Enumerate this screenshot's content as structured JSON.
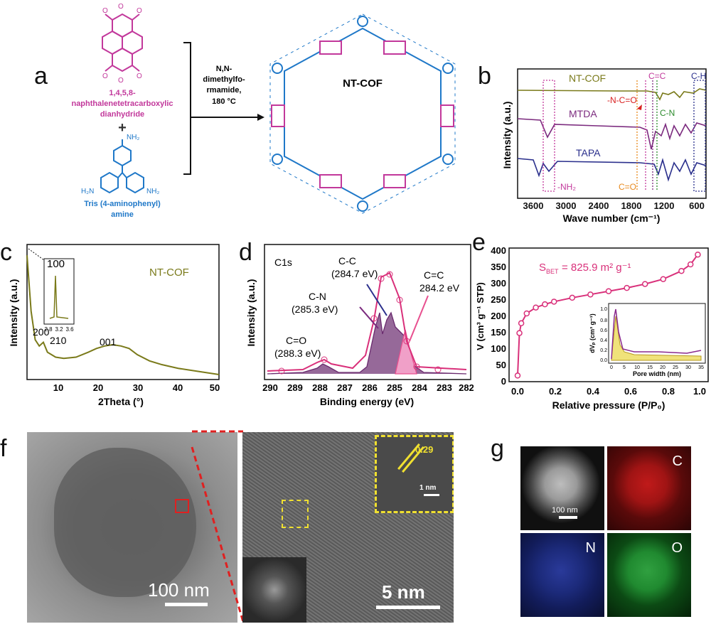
{
  "panels": {
    "a": {
      "letter": "a",
      "reagent1_name": "1,4,5,8-naphthalenetetracarboxylic dianhydride",
      "reagent1_lines": [
        "1,4,5,8-",
        "naphthalenetetracarboxylic",
        "dianhydride"
      ],
      "reagent2_name": "Tris (4-aminophenyl) amine",
      "reagent2_lines": [
        "Tris (4-aminophenyl)",
        "amine"
      ],
      "plus": "+",
      "condition_lines": [
        "N,N-",
        "dimethylfo-",
        "rmamide,",
        "180 °C"
      ],
      "product": "NT-COF",
      "nh2": "NH₂",
      "h2n": "H₂N",
      "colors": {
        "naphthalene": "#c2389b",
        "amine": "#1f78c8"
      }
    },
    "b": {
      "letter": "b",
      "ylabel": "Intensity (a.u.)",
      "xlabel": "Wave number (cm⁻¹)",
      "xticks": [
        "3600",
        "3000",
        "2400",
        "1800",
        "1200",
        "600"
      ],
      "series": [
        {
          "name": "NT-COF",
          "color": "#7a7a1a"
        },
        {
          "name": "MTDA",
          "color": "#7b2a7e"
        },
        {
          "name": "TAPA",
          "color": "#2a2f8c"
        }
      ],
      "annotations": {
        "cc": "C=C",
        "ch": "C-H",
        "ncо": "-N-C=O",
        "cn": "C-N",
        "nh2": "-NH₂",
        "co": "C=O"
      }
    },
    "c": {
      "letter": "c",
      "ylabel": "Intensity (a.u.)",
      "xlabel": "2Theta (°)",
      "xticks": [
        "10",
        "20",
        "30",
        "40",
        "50"
      ],
      "series_label": "NT-COF",
      "peaks": [
        "200",
        "210",
        "001"
      ],
      "inset_peak": "100",
      "inset_ticks": [
        "2.8",
        "3.2",
        "3.6"
      ]
    },
    "d": {
      "letter": "d",
      "title": "C1s",
      "ylabel": "Intensity (a.u.)",
      "xlabel": "Binding energy (eV)",
      "xticks": [
        "290",
        "289",
        "288",
        "287",
        "286",
        "285",
        "284",
        "283",
        "282"
      ],
      "peaks": [
        {
          "label": "C=O",
          "energy": "(288.3 eV)"
        },
        {
          "label": "C-N",
          "energy": "(285.3 eV)"
        },
        {
          "label": "C-C",
          "energy": "(284.7 eV)"
        },
        {
          "label": "C=C",
          "energy": "284.2 eV"
        }
      ]
    },
    "e": {
      "letter": "e",
      "ylabel_main": "V",
      "ylabel_rest": " (cm³ g⁻¹ STP)",
      "xlabel": "Relative pressure (P/P₀)",
      "bet": "S",
      "bet_sub": "BET",
      "bet_val": "= 825.9 m² g⁻¹",
      "yticks": [
        "0",
        "50",
        "100",
        "150",
        "200",
        "250",
        "300",
        "350",
        "400"
      ],
      "xticks": [
        "0.0",
        "0.2",
        "0.4",
        "0.6",
        "0.8",
        "1.0"
      ],
      "inset_xlabel": "Pore width (nm)",
      "inset_ylabel": "dVₚ (cm³ g⁻¹)",
      "inset_yticks": [
        "0.0",
        "0.2",
        "0.4",
        "0.6",
        "0.8",
        "1.0"
      ],
      "inset_xticks": [
        "0",
        "5",
        "10",
        "15",
        "20",
        "25",
        "30",
        "35"
      ]
    },
    "f": {
      "letter": "f",
      "scale1": "100 nm",
      "scale2": "5 nm",
      "lattice": "0.29",
      "scale3": "1 nm"
    },
    "g": {
      "letter": "g",
      "scale": "100 nm",
      "maps": [
        "C",
        "N",
        "O"
      ]
    }
  },
  "chart_data": [
    {
      "type": "line",
      "panel": "c",
      "xlabel": "2Theta (°)",
      "ylabel": "Intensity (a.u.)",
      "xlim": [
        3,
        50
      ],
      "series": [
        {
          "name": "NT-COF",
          "x": [
            3,
            4,
            5,
            6,
            7,
            8,
            9,
            10,
            12,
            15,
            18,
            20,
            22,
            24,
            26,
            28,
            30,
            33,
            36,
            40,
            44,
            48,
            50
          ],
          "y": [
            1.0,
            0.55,
            0.32,
            0.27,
            0.3,
            0.22,
            0.2,
            0.18,
            0.17,
            0.18,
            0.22,
            0.25,
            0.27,
            0.28,
            0.27,
            0.25,
            0.2,
            0.15,
            0.12,
            0.09,
            0.07,
            0.05,
            0.04
          ]
        }
      ]
    },
    {
      "type": "line",
      "panel": "e",
      "xlabel": "Relative pressure (P/P₀)",
      "ylim": [
        0,
        400
      ],
      "series": [
        {
          "x": [
            0.0,
            0.01,
            0.02,
            0.05,
            0.1,
            0.15,
            0.2,
            0.3,
            0.4,
            0.5,
            0.6,
            0.7,
            0.8,
            0.9,
            0.95,
            0.99
          ],
          "y": [
            10,
            140,
            170,
            200,
            218,
            228,
            236,
            248,
            258,
            268,
            278,
            290,
            305,
            330,
            350,
            380
          ]
        }
      ]
    }
  ]
}
